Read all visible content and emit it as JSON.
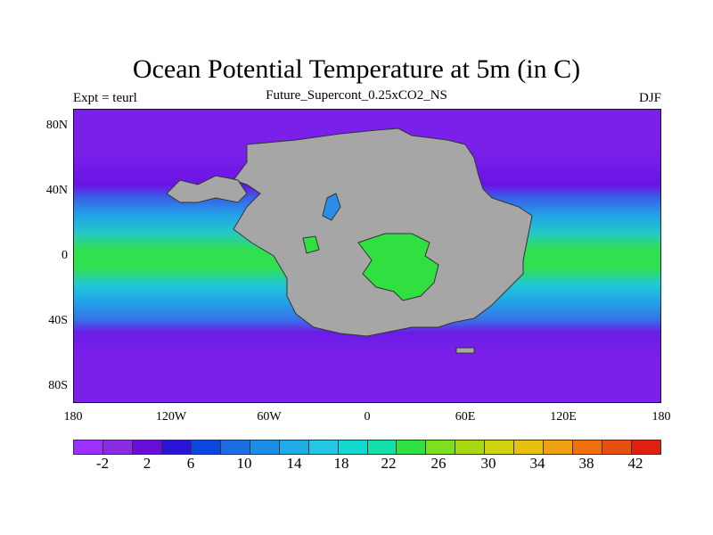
{
  "title": "Ocean Potential Temperature at 5m (in C)",
  "subtitle": "Future_Supercont_0.25xCO2_NS",
  "left_label": "Expt = teurl",
  "right_label": "DJF",
  "y_axis": {
    "ticks": [
      "80N",
      "40N",
      "0",
      "40S",
      "80S"
    ]
  },
  "x_axis": {
    "ticks": [
      "180",
      "120W",
      "60W",
      "0",
      "60E",
      "120E",
      "180"
    ]
  },
  "colorbar": {
    "labels": [
      "-2",
      "2",
      "6",
      "10",
      "14",
      "18",
      "22",
      "26",
      "30",
      "34",
      "38",
      "42"
    ],
    "colors": [
      "#9b30ff",
      "#8a2be2",
      "#6a0dd9",
      "#2a14d8",
      "#0a46e0",
      "#1a6ee0",
      "#1c8ee8",
      "#20aae8",
      "#24c6e8",
      "#12d8d0",
      "#12e0a8",
      "#30e040",
      "#7ce020",
      "#a8d810",
      "#d0d410",
      "#e8c010",
      "#f0a010",
      "#f07010",
      "#e85010",
      "#e02010"
    ]
  },
  "colors": {
    "ocean_polar": "#7a20ea",
    "ocean_cool": "#3a70e8",
    "ocean_mid": "#20b0e8",
    "ocean_warm": "#30e040",
    "land": "#a6a6a6"
  },
  "map_data": {
    "projection": "cylindrical equidistant",
    "lon_range": [
      -180,
      180
    ],
    "lat_range": [
      -90,
      90
    ],
    "features": [
      "supercontinent"
    ]
  }
}
